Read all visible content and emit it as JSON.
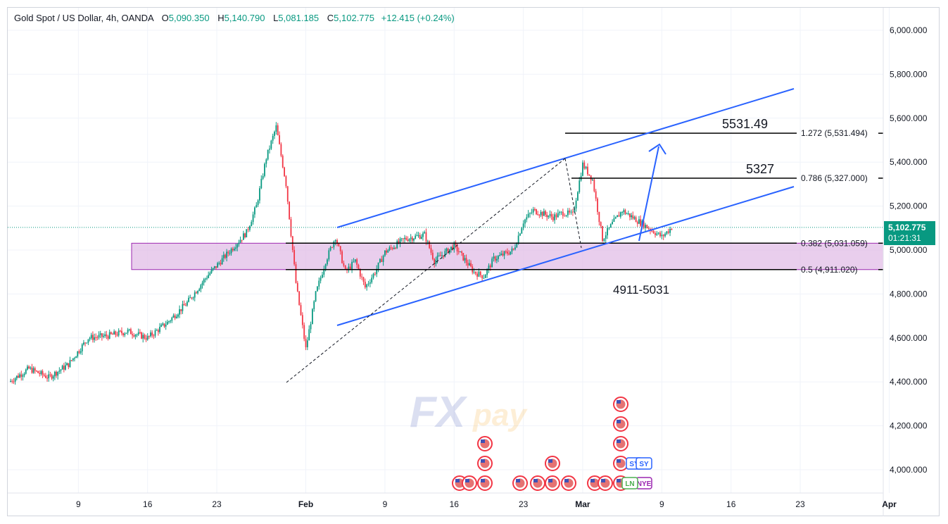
{
  "header": {
    "symbol": "Gold Spot / US Dollar, 4h, OANDA",
    "open_label": "O",
    "open": "5,090.350",
    "high_label": "H",
    "high": "5,140.790",
    "low_label": "L",
    "low": "5,081.185",
    "close_label": "C",
    "close": "5,102.775",
    "change": "+12.415 (+0.24%)"
  },
  "last_price": {
    "value": "5,102.775",
    "countdown": "01:21:31",
    "color": "#089981"
  },
  "chart_data": {
    "type": "candlestick",
    "title": "Gold Spot / US Dollar, 4h, OANDA",
    "ylim": [
      3900,
      6050
    ],
    "y_ticks": [
      "6,000.000",
      "5,800.000",
      "5,600.000",
      "5,400.000",
      "5,200.000",
      "5,000.000",
      "4,800.000",
      "4,600.000",
      "4,400.000",
      "4,200.000",
      "4,000.000"
    ],
    "y_tick_values": [
      6000,
      5800,
      5600,
      5400,
      5200,
      5000,
      4800,
      4600,
      4400,
      4200,
      4000
    ],
    "x_ticks": [
      "9",
      "16",
      "23",
      "Feb",
      "9",
      "16",
      "23",
      "Mar",
      "9",
      "16",
      "23",
      "Apr"
    ],
    "x_tick_dates": [
      "2026-01-09",
      "2026-01-16",
      "2026-01-23",
      "2026-02-01",
      "2026-02-09",
      "2026-02-16",
      "2026-02-23",
      "2026-03-01",
      "2026-03-09",
      "2026-03-16",
      "2026-03-23",
      "2026-04-01"
    ],
    "x_range": [
      "2026-01-02",
      "2026-04-01"
    ],
    "up_color": "#089981",
    "down_color": "#f23645",
    "price_path": [
      {
        "date": "2026-01-02",
        "close": 4400
      },
      {
        "date": "2026-01-04",
        "close": 4460
      },
      {
        "date": "2026-01-06",
        "close": 4420
      },
      {
        "date": "2026-01-08",
        "close": 4480
      },
      {
        "date": "2026-01-10",
        "close": 4600
      },
      {
        "date": "2026-01-12",
        "close": 4610
      },
      {
        "date": "2026-01-14",
        "close": 4630
      },
      {
        "date": "2026-01-16",
        "close": 4600
      },
      {
        "date": "2026-01-18",
        "close": 4670
      },
      {
        "date": "2026-01-20",
        "close": 4760
      },
      {
        "date": "2026-01-22",
        "close": 4880
      },
      {
        "date": "2026-01-24",
        "close": 4980
      },
      {
        "date": "2026-01-26",
        "close": 5080
      },
      {
        "date": "2026-01-27",
        "close": 5200
      },
      {
        "date": "2026-01-28",
        "close": 5420
      },
      {
        "date": "2026-01-29",
        "close": 5560
      },
      {
        "date": "2026-01-30",
        "close": 5300
      },
      {
        "date": "2026-01-31",
        "close": 4850
      },
      {
        "date": "2026-02-01",
        "close": 4550
      },
      {
        "date": "2026-02-02",
        "close": 4800
      },
      {
        "date": "2026-02-03",
        "close": 4950
      },
      {
        "date": "2026-02-04",
        "close": 5060
      },
      {
        "date": "2026-02-05",
        "close": 4900
      },
      {
        "date": "2026-02-06",
        "close": 4950
      },
      {
        "date": "2026-02-07",
        "close": 4830
      },
      {
        "date": "2026-02-08",
        "close": 4900
      },
      {
        "date": "2026-02-09",
        "close": 4990
      },
      {
        "date": "2026-02-11",
        "close": 5050
      },
      {
        "date": "2026-02-13",
        "close": 5070
      },
      {
        "date": "2026-02-14",
        "close": 4950
      },
      {
        "date": "2026-02-16",
        "close": 5020
      },
      {
        "date": "2026-02-18",
        "close": 4900
      },
      {
        "date": "2026-02-19",
        "close": 4880
      },
      {
        "date": "2026-02-20",
        "close": 4960
      },
      {
        "date": "2026-02-22",
        "close": 5000
      },
      {
        "date": "2026-02-23",
        "close": 5130
      },
      {
        "date": "2026-02-24",
        "close": 5180
      },
      {
        "date": "2026-02-26",
        "close": 5150
      },
      {
        "date": "2026-02-27",
        "close": 5170
      },
      {
        "date": "2026-02-28",
        "close": 5160
      },
      {
        "date": "2026-03-01",
        "close": 5390
      },
      {
        "date": "2026-03-02",
        "close": 5320
      },
      {
        "date": "2026-03-03",
        "close": 5050
      },
      {
        "date": "2026-03-04",
        "close": 5120
      },
      {
        "date": "2026-03-05",
        "close": 5180
      },
      {
        "date": "2026-03-07",
        "close": 5120
      },
      {
        "date": "2026-03-08",
        "close": 5090
      },
      {
        "date": "2026-03-09",
        "close": 5060
      },
      {
        "date": "2026-03-10",
        "close": 5102.775
      }
    ],
    "fib_levels": [
      {
        "ratio": "1.272",
        "price": 5531.494,
        "label": "1.272 (5,531.494)"
      },
      {
        "ratio": "0.786",
        "price": 5327.0,
        "label": "0.786 (5,327.000)"
      },
      {
        "ratio": "0.382",
        "price": 5031.059,
        "label": "0.382 (5,031.059)"
      },
      {
        "ratio": "0.5",
        "price": 4911.02,
        "label": "0.5 (4,911.020)"
      }
    ],
    "zone": {
      "low": 4911,
      "high": 5031,
      "color": "#e1bee7"
    },
    "annotations": [
      "5531.49",
      "5327",
      "4911-5031"
    ],
    "channel_color": "#2962ff",
    "watermark": "FXpay",
    "event_icons": [
      "US",
      "SY",
      "NYE",
      "LN"
    ]
  }
}
